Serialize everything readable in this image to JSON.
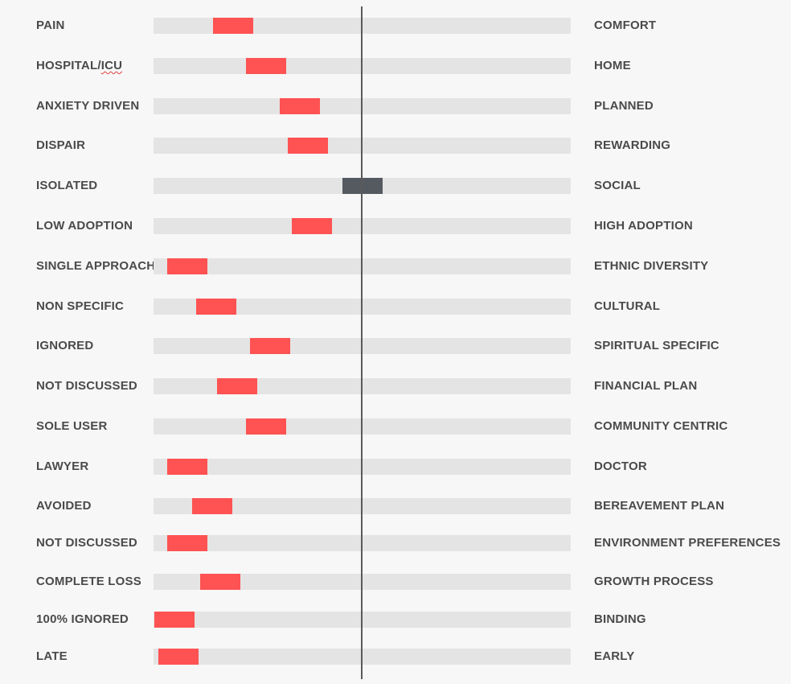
{
  "chart_data": {
    "type": "range-position",
    "scale_min": 0,
    "scale_max": 100,
    "center": 50,
    "colors": {
      "marker": "#ff5252",
      "neutral_marker": "#555a61",
      "track": "#e4e4e4",
      "center_line": "#5a5a5a"
    },
    "rows": [
      {
        "left": "PAIN",
        "right": "COMFORT",
        "value": 19
      },
      {
        "left": "HOSPITAL/ICU",
        "right": "HOME",
        "value": 27
      },
      {
        "left": "ANXIETY DRIVEN",
        "right": "PLANNED",
        "value": 35
      },
      {
        "left": "DISPAIR",
        "right": "REWARDING",
        "value": 37
      },
      {
        "left": "ISOLATED",
        "right": "SOCIAL",
        "value": 50,
        "neutral": true
      },
      {
        "left": "LOW ADOPTION",
        "right": "HIGH ADOPTION",
        "value": 38
      },
      {
        "left": "SINGLE APPROACH",
        "right": "ETHNIC DIVERSITY",
        "value": 8
      },
      {
        "left": "NON SPECIFIC",
        "right": "CULTURAL",
        "value": 15
      },
      {
        "left": "IGNORED",
        "right": "SPIRITUAL SPECIFIC",
        "value": 28
      },
      {
        "left": "NOT DISCUSSED",
        "right": "FINANCIAL PLAN",
        "value": 20
      },
      {
        "left": "SOLE USER",
        "right": "COMMUNITY CENTRIC",
        "value": 27
      },
      {
        "left": "LAWYER",
        "right": "DOCTOR",
        "value": 8
      },
      {
        "left": "AVOIDED",
        "right": "BEREAVEMENT PLAN",
        "value": 14
      },
      {
        "left": "NOT DISCUSSED",
        "right": "ENVIRONMENT PREFERENCES",
        "value": 8
      },
      {
        "left": "COMPLETE LOSS",
        "right": "GROWTH PROCESS",
        "value": 16
      },
      {
        "left": "100% IGNORED",
        "right": "BINDING",
        "value": 5
      },
      {
        "left": "LATE",
        "right": "EARLY",
        "value": 6
      }
    ]
  }
}
